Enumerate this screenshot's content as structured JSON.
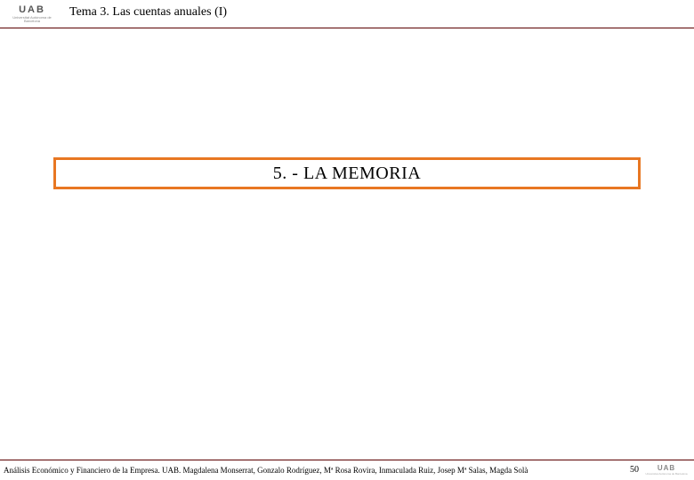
{
  "header": {
    "logo_main": "UAB",
    "logo_sub": "Universitat Autònoma de Barcelona",
    "title": "Tema 3. Las cuentas anuales (I)"
  },
  "section": {
    "title": "5. - LA MEMORIA",
    "border_color": "#e87722"
  },
  "footer": {
    "text": "Análisis Económico y Financiero de la Empresa. UAB. Magdalena Monserrat, Gonzalo Rodríguez, Mª Rosa Rovira, Inmaculada Ruiz, Josep Mª Salas, Magda Solà",
    "page_number": "50",
    "logo_main": "UAB",
    "logo_sub": "Universitat Autònoma de Barcelona"
  },
  "colors": {
    "rule": "#5a0000",
    "section_border": "#e87722",
    "background": "#ffffff"
  }
}
